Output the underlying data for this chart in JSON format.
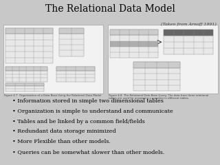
{
  "title": "The Relational Data Model",
  "citation": "(Taken from Arnoff 1991)",
  "bullet_points": [
    "Information stored in simple two dimensional tables",
    "Organization is simple to understand and communicate",
    "Tables and be linked by a common field/fields",
    "Redundant data storage minimized",
    "More Flexible than other models.",
    "Queries can be somewhat slower than other models."
  ],
  "bg_color": "#c8c8c8",
  "box_facecolor": "#f2f2f2",
  "box_edgecolor": "#aaaaaa",
  "table_facecolor": "#e8e8e8",
  "table_edgecolor": "#888888",
  "header_color": "#cccccc",
  "title_fontsize": 10,
  "citation_fontsize": 4.5,
  "bullet_fontsize": 5.8,
  "caption_fontsize": 2.8
}
